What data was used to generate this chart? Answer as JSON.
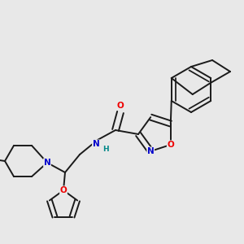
{
  "bg_color": "#e8e8e8",
  "bond_color": "#1a1a1a",
  "bond_width": 1.4,
  "atom_colors": {
    "N": "#0000cc",
    "O": "#ee0000",
    "H": "#008888"
  }
}
